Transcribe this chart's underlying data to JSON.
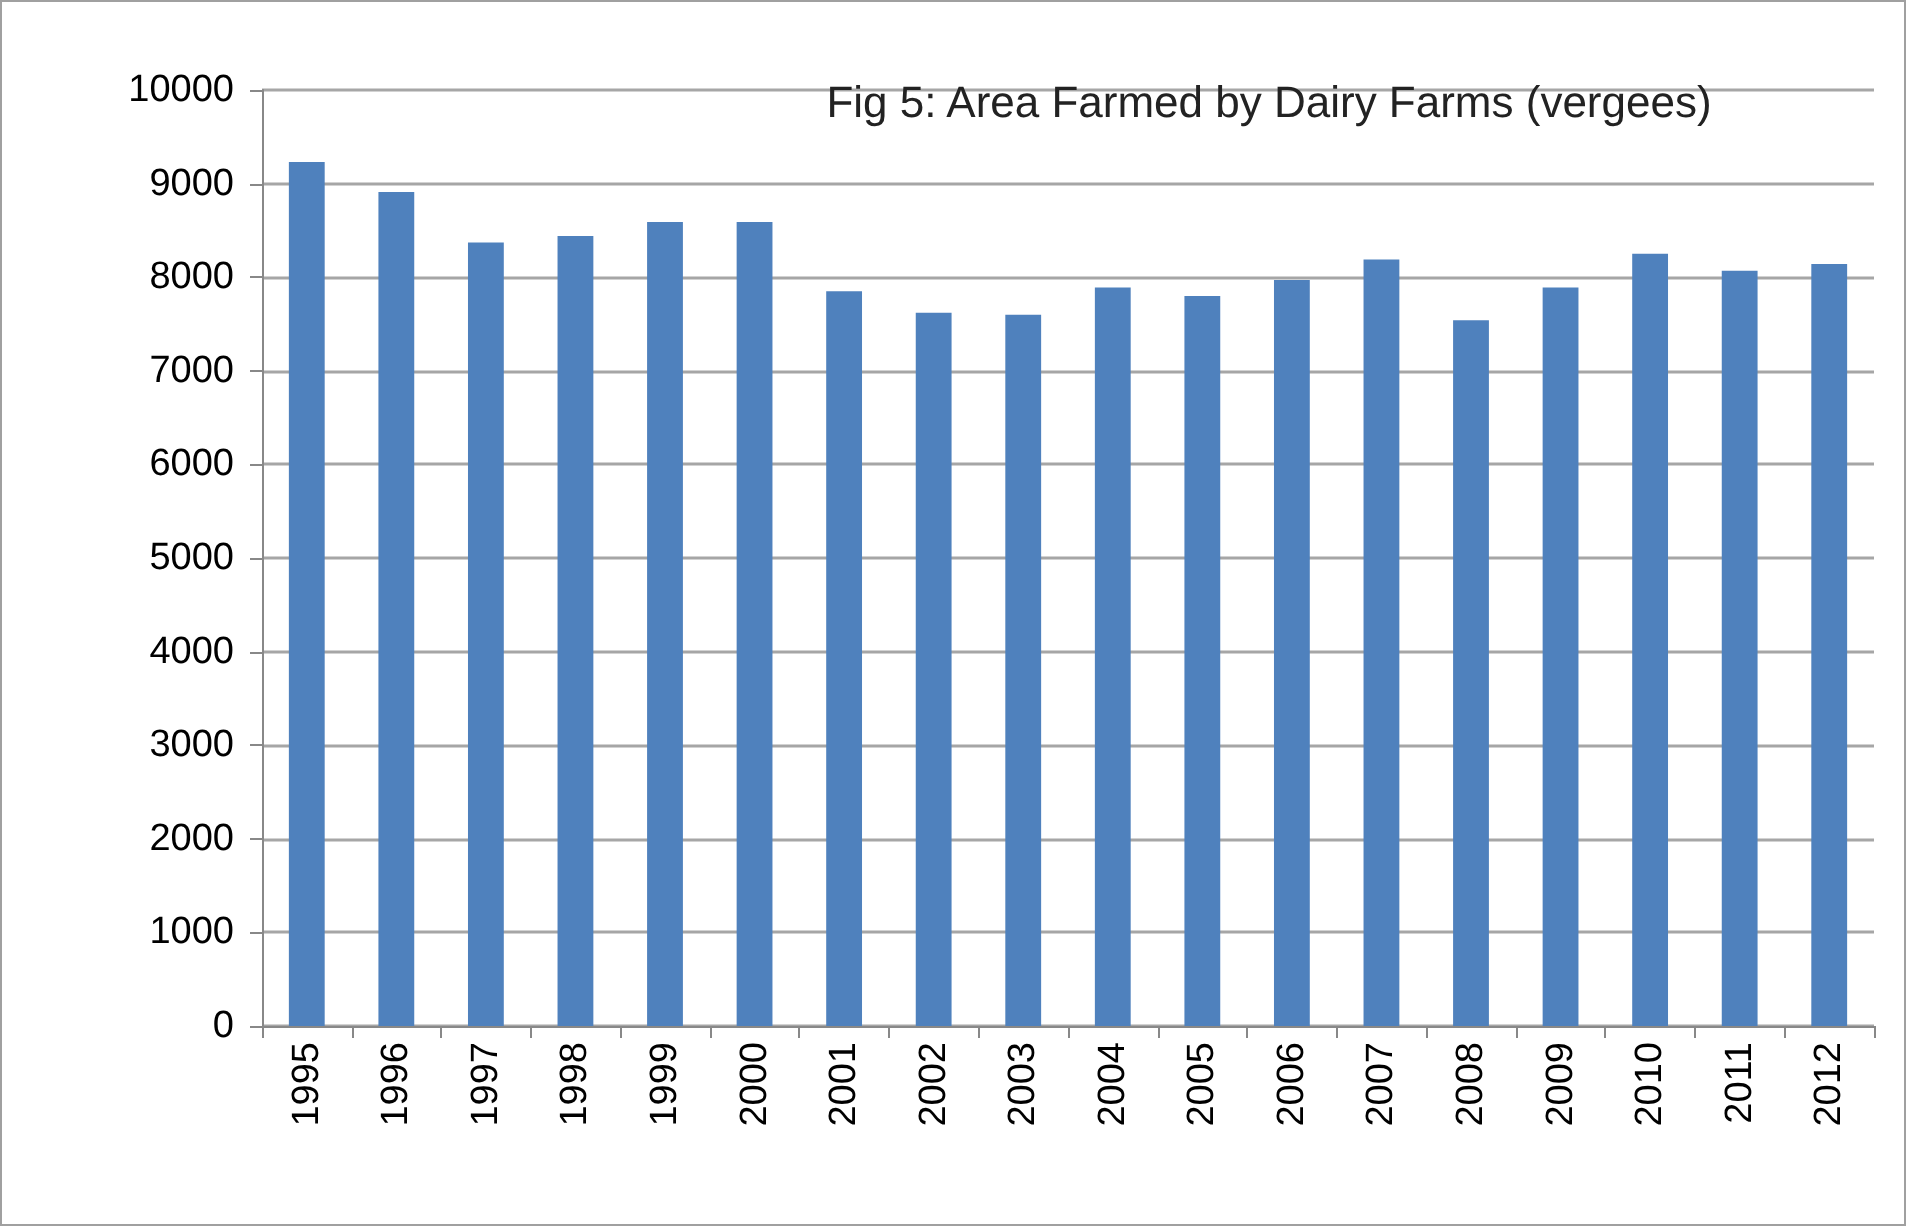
{
  "chart_data": {
    "type": "bar",
    "title": "Fig 5: Area Farmed by Dairy Farms (vergees)",
    "categories": [
      "1995",
      "1996",
      "1997",
      "1998",
      "1999",
      "2000",
      "2001",
      "2002",
      "2003",
      "2004",
      "2005",
      "2006",
      "2007",
      "2008",
      "2009",
      "2010",
      "2011",
      "2012"
    ],
    "values": [
      9230,
      8910,
      8370,
      8440,
      8590,
      8590,
      7850,
      7620,
      7600,
      7890,
      7800,
      7970,
      8190,
      7540,
      7890,
      8250,
      8070,
      8140
    ],
    "color": "#4f81bd",
    "ylim": [
      0,
      10000
    ],
    "yticks": [
      0,
      1000,
      2000,
      3000,
      4000,
      5000,
      6000,
      7000,
      8000,
      9000,
      10000
    ],
    "grid": "y"
  }
}
